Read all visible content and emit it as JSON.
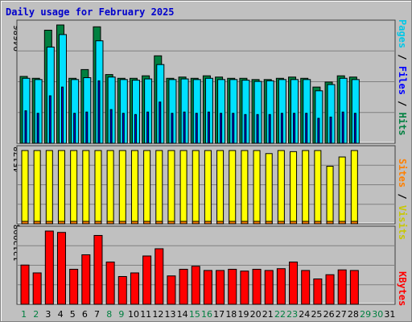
{
  "title": "Daily usage for February 2025",
  "chart_data": [
    {
      "type": "bar",
      "name": "hits-files-pages",
      "x": [
        1,
        2,
        3,
        4,
        5,
        6,
        7,
        8,
        9,
        10,
        11,
        12,
        13,
        14,
        15,
        16,
        17,
        18,
        19,
        20,
        21,
        22,
        23,
        24,
        25,
        26,
        27,
        28,
        29,
        30,
        31
      ],
      "ymax_label": "94686",
      "ylim": [
        0,
        94686
      ],
      "series": [
        {
          "name": "Hits",
          "color": "#008040",
          "values": [
            53500,
            52000,
            90500,
            94686,
            52000,
            59000,
            93200,
            55000,
            52000,
            52000,
            54000,
            70000,
            52000,
            53000,
            52000,
            54000,
            53000,
            52000,
            52000,
            51000,
            51000,
            52000,
            53000,
            52000,
            45000,
            49000,
            54000,
            53000,
            0,
            0,
            0
          ]
        },
        {
          "name": "Files",
          "color": "#00e0ff",
          "values": [
            52000,
            51000,
            77000,
            87000,
            51000,
            52500,
            82000,
            53000,
            51000,
            50500,
            51500,
            63000,
            51000,
            51500,
            51000,
            52000,
            51000,
            51000,
            50500,
            49500,
            50000,
            51000,
            51000,
            51000,
            42000,
            47000,
            52000,
            51000,
            0,
            0,
            0
          ]
        },
        {
          "name": "Pages",
          "color": "#0000ff",
          "values": [
            26000,
            24000,
            38000,
            45000,
            24000,
            25000,
            50000,
            27000,
            24000,
            23000,
            25000,
            33000,
            24000,
            25000,
            24000,
            25000,
            24000,
            24000,
            23000,
            23000,
            23000,
            24000,
            24000,
            24000,
            20000,
            21000,
            25000,
            24000,
            0,
            0,
            0
          ]
        }
      ]
    },
    {
      "type": "bar",
      "name": "visits-sites",
      "x": [
        1,
        2,
        3,
        4,
        5,
        6,
        7,
        8,
        9,
        10,
        11,
        12,
        13,
        14,
        15,
        16,
        17,
        18,
        19,
        20,
        21,
        22,
        23,
        24,
        25,
        26,
        27,
        28,
        29,
        30,
        31
      ],
      "ymax_label": "45178",
      "ylim": [
        0,
        45178
      ],
      "series": [
        {
          "name": "Visits",
          "color": "#ffff00",
          "values": [
            45178,
            45178,
            45178,
            45178,
            45178,
            45178,
            45178,
            45178,
            45178,
            45178,
            45178,
            45178,
            45178,
            45178,
            45178,
            45178,
            45178,
            45178,
            45178,
            45178,
            43300,
            45178,
            44500,
            45178,
            45178,
            35500,
            41200,
            45178,
            0,
            0,
            0
          ]
        },
        {
          "name": "Sites",
          "color": "#ff8000",
          "values": [
            1200,
            1200,
            1400,
            1300,
            1200,
            1300,
            1400,
            1300,
            1200,
            1200,
            1200,
            1300,
            1200,
            1300,
            1300,
            1300,
            1300,
            1200,
            1200,
            1200,
            1200,
            1200,
            1300,
            1300,
            1200,
            1300,
            1300,
            1400,
            0,
            0,
            0
          ]
        }
      ]
    },
    {
      "type": "bar",
      "name": "kbytes",
      "x": [
        1,
        2,
        3,
        4,
        5,
        6,
        7,
        8,
        9,
        10,
        11,
        12,
        13,
        14,
        15,
        16,
        17,
        18,
        19,
        20,
        21,
        22,
        23,
        24,
        25,
        26,
        27,
        28,
        29,
        30,
        31
      ],
      "ymax_label": "1212908",
      "ylim": [
        0,
        1212908
      ],
      "series": [
        {
          "name": "KBytes",
          "color": "#ff0000",
          "values": [
            650000,
            520000,
            1212908,
            1190000,
            580000,
            820000,
            1140000,
            700000,
            460000,
            520000,
            800000,
            920000,
            470000,
            580000,
            630000,
            560000,
            560000,
            580000,
            550000,
            580000,
            560000,
            590000,
            700000,
            560000,
            420000,
            490000,
            570000,
            560000,
            0,
            0,
            0
          ]
        }
      ]
    }
  ],
  "right_labels": {
    "top": [
      {
        "text": "Pages",
        "color": "#00c8e8"
      },
      {
        "text": " / ",
        "color": "#000000"
      },
      {
        "text": "Files",
        "color": "#0000ff"
      },
      {
        "text": " / ",
        "color": "#000000"
      },
      {
        "text": "Hits",
        "color": "#008040"
      }
    ],
    "middle": [
      {
        "text": "Sites",
        "color": "#ff8000"
      },
      {
        "text": " / ",
        "color": "#000000"
      },
      {
        "text": "Visits",
        "color": "#c8c800"
      }
    ],
    "bottom": [
      {
        "text": "KBytes",
        "color": "#ff0000"
      }
    ]
  },
  "weekend_days": [
    1,
    2,
    8,
    9,
    15,
    16,
    22,
    23,
    29,
    30
  ],
  "colors": {
    "weekday_label": "#000000",
    "weekend_label": "#008040",
    "panel_bg": "#c0c0c0",
    "gridline": "#808080",
    "title": "#0000cc"
  }
}
